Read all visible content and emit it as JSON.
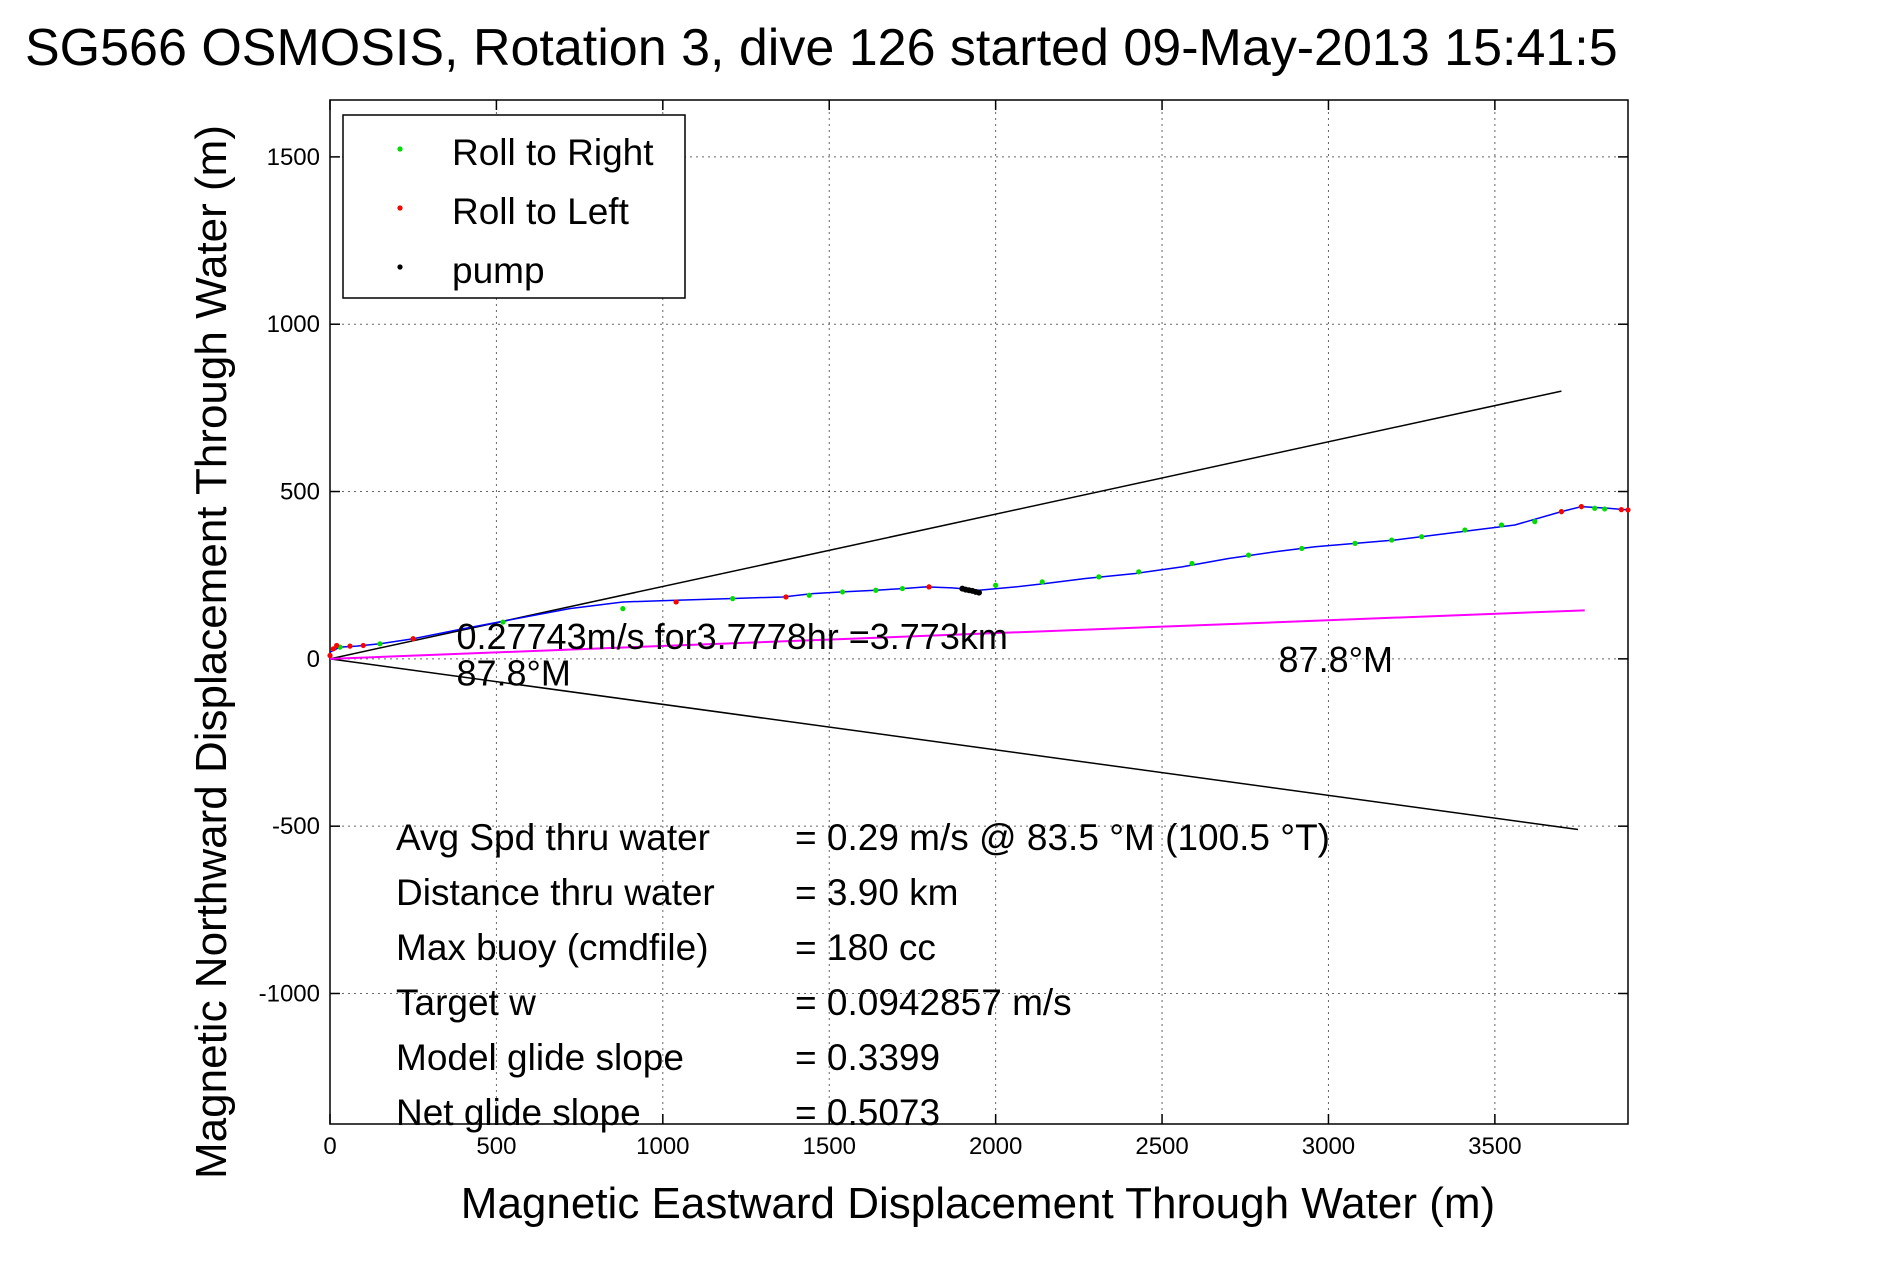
{
  "chart_data": {
    "type": "line",
    "title": "SG566 OSMOSIS, Rotation 3, dive 126 started 09-May-2013 15:41:5",
    "xlabel": "Magnetic Eastward Displacement Through Water (m)",
    "ylabel": "Magnetic Northward Displacement Through Water (m)",
    "xlim": [
      0,
      3900
    ],
    "ylim": [
      -1390,
      1670
    ],
    "xticks": [
      0,
      500,
      1000,
      1500,
      2000,
      2500,
      3000,
      3500
    ],
    "yticks": [
      -1000,
      -500,
      0,
      500,
      1000,
      1500
    ],
    "grid": true,
    "legend_position": "top-left",
    "legend": [
      {
        "label": "Roll to Right",
        "color": "#00dd00"
      },
      {
        "label": "Roll to Left",
        "color": "#ff0000"
      },
      {
        "label": "pump",
        "color": "#000000"
      }
    ],
    "track": {
      "color": "#0000ff",
      "x": [
        0,
        30,
        80,
        150,
        250,
        400,
        560,
        720,
        880,
        1040,
        1200,
        1360,
        1450,
        1540,
        1640,
        1720,
        1790,
        1870,
        1950,
        2060,
        2150,
        2270,
        2420,
        2560,
        2700,
        2840,
        2960,
        3080,
        3200,
        3320,
        3440,
        3560,
        3700,
        3760,
        3840,
        3900
      ],
      "y": [
        20,
        35,
        38,
        45,
        60,
        90,
        120,
        150,
        170,
        175,
        180,
        185,
        195,
        200,
        205,
        210,
        215,
        212,
        205,
        215,
        225,
        240,
        255,
        275,
        300,
        320,
        335,
        345,
        355,
        370,
        385,
        400,
        440,
        455,
        450,
        445
      ]
    },
    "roll_right_points": {
      "color": "#00dd00",
      "x": [
        30,
        150,
        250,
        520,
        880,
        1040,
        1210,
        1370,
        1440,
        1540,
        1640,
        1720,
        1800,
        2000,
        2140,
        2310,
        2430,
        2590,
        2760,
        2920,
        3080,
        3190,
        3280,
        3410,
        3520,
        3620,
        3700,
        3760,
        3800,
        3830
      ],
      "y": [
        35,
        45,
        60,
        110,
        150,
        170,
        180,
        185,
        190,
        200,
        205,
        210,
        215,
        220,
        230,
        245,
        260,
        285,
        310,
        330,
        345,
        355,
        365,
        385,
        400,
        410,
        440,
        455,
        450,
        448
      ]
    },
    "roll_left_points": {
      "color": "#ff0000",
      "x": [
        0,
        10,
        20,
        60,
        100,
        250,
        1040,
        1370,
        1800,
        3700,
        3760,
        3880,
        3900
      ],
      "y": [
        10,
        30,
        40,
        38,
        40,
        60,
        170,
        185,
        215,
        440,
        455,
        446,
        445
      ]
    },
    "pump_points": {
      "color": "#000000",
      "x": [
        1900,
        1910,
        1920,
        1930,
        1940,
        1950
      ],
      "y": [
        210,
        207,
        205,
        203,
        200,
        198
      ]
    },
    "envelope_lines": {
      "color": "#000000",
      "upper": {
        "x": [
          0,
          3700
        ],
        "y": [
          0,
          800
        ]
      },
      "lower": {
        "x": [
          0,
          3750
        ],
        "y": [
          0,
          -510
        ]
      }
    },
    "heading_line": {
      "color": "#ff00ff",
      "x": [
        0,
        3770
      ],
      "y": [
        0,
        145
      ]
    },
    "annotations": [
      {
        "text": "0.27743m/s for3.7778hr =3.773km",
        "x": 380,
        "y": 30
      },
      {
        "text": "87.8°M",
        "x": 380,
        "y": -80
      },
      {
        "text": "87.8°M",
        "x": 2850,
        "y": -40
      }
    ],
    "stats": [
      {
        "label": "Avg Spd thru water",
        "value": "=  0.29 m/s @  83.5 °M (100.5 °T)"
      },
      {
        "label": "Distance thru water",
        "value": "=  3.90 km"
      },
      {
        "label": "Max buoy (cmdfile)",
        "value": "= 180 cc"
      },
      {
        "label": "Target w",
        "value": "= 0.0942857 m/s"
      },
      {
        "label": "Model glide slope",
        "value": "= 0.3399"
      },
      {
        "label": "Net glide slope",
        "value": "= 0.5073"
      }
    ]
  }
}
